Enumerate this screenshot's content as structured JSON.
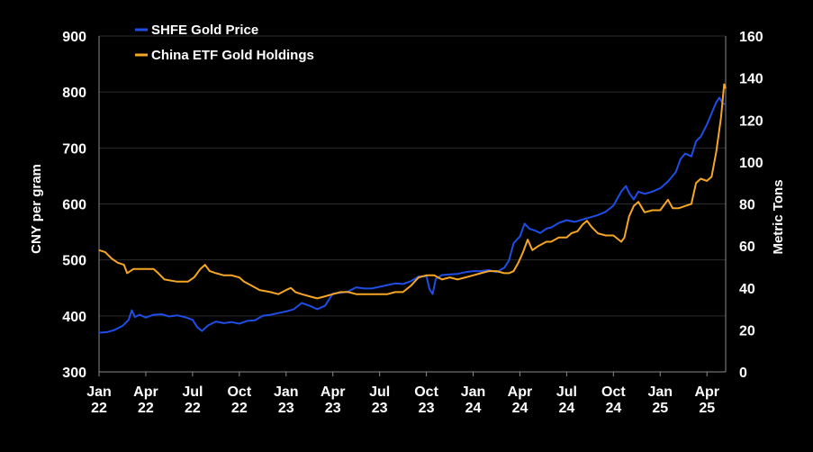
{
  "chart_data": {
    "type": "line",
    "title": "",
    "background": "#000000",
    "x_ticks": [
      {
        "month": "Jan",
        "year": "22",
        "t": 0
      },
      {
        "month": "Apr",
        "year": "22",
        "t": 3
      },
      {
        "month": "Jul",
        "year": "22",
        "t": 6
      },
      {
        "month": "Oct",
        "year": "22",
        "t": 9
      },
      {
        "month": "Jan",
        "year": "23",
        "t": 12
      },
      {
        "month": "Apr",
        "year": "23",
        "t": 15
      },
      {
        "month": "Jul",
        "year": "23",
        "t": 18
      },
      {
        "month": "Oct",
        "year": "23",
        "t": 21
      },
      {
        "month": "Jan",
        "year": "24",
        "t": 24
      },
      {
        "month": "Apr",
        "year": "24",
        "t": 27
      },
      {
        "month": "Jul",
        "year": "24",
        "t": 30
      },
      {
        "month": "Oct",
        "year": "24",
        "t": 33
      },
      {
        "month": "Jan",
        "year": "25",
        "t": 36
      },
      {
        "month": "Apr",
        "year": "25",
        "t": 39
      }
    ],
    "x_range": [
      0,
      40.2
    ],
    "y_left": {
      "label": "CNY per gram",
      "min": 300,
      "max": 900,
      "ticks": [
        300,
        400,
        500,
        600,
        700,
        800,
        900
      ]
    },
    "y_right": {
      "label": "Metric Tons",
      "min": 0,
      "max": 160,
      "ticks": [
        0,
        20,
        40,
        60,
        80,
        100,
        120,
        140,
        160
      ]
    },
    "series": [
      {
        "name": "SHFE Gold Price",
        "axis": "left",
        "color": "#1f4de6",
        "points": [
          [
            0,
            370
          ],
          [
            0.5,
            371
          ],
          [
            1,
            375
          ],
          [
            1.5,
            382
          ],
          [
            1.9,
            393
          ],
          [
            2.1,
            410
          ],
          [
            2.3,
            398
          ],
          [
            2.6,
            402
          ],
          [
            3,
            397
          ],
          [
            3.5,
            402
          ],
          [
            4,
            403
          ],
          [
            4.5,
            399
          ],
          [
            5,
            401
          ],
          [
            5.5,
            398
          ],
          [
            6,
            393
          ],
          [
            6.3,
            380
          ],
          [
            6.6,
            373
          ],
          [
            7,
            383
          ],
          [
            7.5,
            390
          ],
          [
            8,
            387
          ],
          [
            8.5,
            389
          ],
          [
            9,
            386
          ],
          [
            9.5,
            391
          ],
          [
            10,
            392
          ],
          [
            10.5,
            400
          ],
          [
            11,
            402
          ],
          [
            11.5,
            405
          ],
          [
            12,
            408
          ],
          [
            12.5,
            412
          ],
          [
            13,
            423
          ],
          [
            13.5,
            418
          ],
          [
            14,
            412
          ],
          [
            14.5,
            418
          ],
          [
            15,
            440
          ],
          [
            15.5,
            441
          ],
          [
            16,
            444
          ],
          [
            16.5,
            451
          ],
          [
            17,
            449
          ],
          [
            17.5,
            449
          ],
          [
            18,
            452
          ],
          [
            18.5,
            455
          ],
          [
            19,
            458
          ],
          [
            19.5,
            457
          ],
          [
            20,
            462
          ],
          [
            20.5,
            470
          ],
          [
            21,
            471
          ],
          [
            21.2,
            448
          ],
          [
            21.4,
            439
          ],
          [
            21.6,
            466
          ],
          [
            22,
            473
          ],
          [
            22.5,
            474
          ],
          [
            23,
            475
          ],
          [
            23.5,
            478
          ],
          [
            24,
            480
          ],
          [
            24.5,
            480
          ],
          [
            25,
            482
          ],
          [
            25.5,
            478
          ],
          [
            26,
            486
          ],
          [
            26.3,
            499
          ],
          [
            26.6,
            530
          ],
          [
            27,
            542
          ],
          [
            27.3,
            565
          ],
          [
            27.6,
            556
          ],
          [
            28,
            552
          ],
          [
            28.3,
            548
          ],
          [
            28.7,
            556
          ],
          [
            29,
            558
          ],
          [
            29.5,
            566
          ],
          [
            30,
            571
          ],
          [
            30.5,
            568
          ],
          [
            31,
            572
          ],
          [
            31.5,
            576
          ],
          [
            32,
            580
          ],
          [
            32.5,
            586
          ],
          [
            33,
            597
          ],
          [
            33.5,
            622
          ],
          [
            33.8,
            632
          ],
          [
            34,
            620
          ],
          [
            34.3,
            608
          ],
          [
            34.6,
            622
          ],
          [
            35,
            618
          ],
          [
            35.5,
            622
          ],
          [
            36,
            628
          ],
          [
            36.5,
            640
          ],
          [
            37,
            657
          ],
          [
            37.3,
            680
          ],
          [
            37.6,
            690
          ],
          [
            38,
            685
          ],
          [
            38.3,
            712
          ],
          [
            38.6,
            720
          ],
          [
            39,
            742
          ],
          [
            39.3,
            762
          ],
          [
            39.6,
            782
          ],
          [
            39.8,
            790
          ],
          [
            40,
            780
          ],
          [
            40.15,
            778
          ]
        ]
      },
      {
        "name": "China ETF Gold Holdings",
        "axis": "right",
        "color": "#f5a623",
        "points": [
          [
            0,
            58
          ],
          [
            0.4,
            57
          ],
          [
            0.8,
            54
          ],
          [
            1.2,
            52
          ],
          [
            1.6,
            51
          ],
          [
            1.8,
            47
          ],
          [
            2.2,
            49
          ],
          [
            3,
            49
          ],
          [
            3.5,
            49
          ],
          [
            3.8,
            47
          ],
          [
            4.2,
            44
          ],
          [
            5,
            43
          ],
          [
            5.7,
            43
          ],
          [
            6.1,
            45
          ],
          [
            6.5,
            49
          ],
          [
            6.8,
            51
          ],
          [
            7.1,
            48
          ],
          [
            7.5,
            47
          ],
          [
            8,
            46
          ],
          [
            8.5,
            46
          ],
          [
            9,
            45
          ],
          [
            9.3,
            43
          ],
          [
            9.8,
            41
          ],
          [
            10.3,
            39
          ],
          [
            11,
            38
          ],
          [
            11.5,
            37
          ],
          [
            12,
            39
          ],
          [
            12.3,
            40
          ],
          [
            12.6,
            38
          ],
          [
            13,
            37
          ],
          [
            13.5,
            36
          ],
          [
            14,
            35
          ],
          [
            14.5,
            36
          ],
          [
            15,
            37
          ],
          [
            15.5,
            38
          ],
          [
            16,
            38
          ],
          [
            16.5,
            37
          ],
          [
            17,
            37
          ],
          [
            17.5,
            37
          ],
          [
            18,
            37
          ],
          [
            18.5,
            37
          ],
          [
            19,
            38
          ],
          [
            19.5,
            38
          ],
          [
            20,
            41
          ],
          [
            20.5,
            45
          ],
          [
            21,
            46
          ],
          [
            21.5,
            46
          ],
          [
            22,
            44
          ],
          [
            22.5,
            45
          ],
          [
            23,
            44
          ],
          [
            23.5,
            45
          ],
          [
            24,
            46
          ],
          [
            24.5,
            47
          ],
          [
            25,
            48
          ],
          [
            25.5,
            48
          ],
          [
            26,
            47
          ],
          [
            26.3,
            47
          ],
          [
            26.6,
            48
          ],
          [
            26.9,
            52
          ],
          [
            27.2,
            57
          ],
          [
            27.5,
            63
          ],
          [
            27.8,
            58
          ],
          [
            28.2,
            60
          ],
          [
            28.7,
            62
          ],
          [
            29,
            62
          ],
          [
            29.5,
            64
          ],
          [
            30,
            64
          ],
          [
            30.3,
            66
          ],
          [
            30.7,
            67
          ],
          [
            31,
            70
          ],
          [
            31.3,
            72
          ],
          [
            31.6,
            69
          ],
          [
            32,
            66
          ],
          [
            32.5,
            65
          ],
          [
            33,
            65
          ],
          [
            33.5,
            62
          ],
          [
            33.7,
            64
          ],
          [
            34,
            74
          ],
          [
            34.3,
            79
          ],
          [
            34.6,
            81
          ],
          [
            35,
            76
          ],
          [
            35.5,
            77
          ],
          [
            36,
            77
          ],
          [
            36.5,
            82
          ],
          [
            36.8,
            78
          ],
          [
            37.2,
            78
          ],
          [
            37.6,
            79
          ],
          [
            38,
            80
          ],
          [
            38.3,
            90
          ],
          [
            38.6,
            92
          ],
          [
            39,
            91
          ],
          [
            39.3,
            93
          ],
          [
            39.6,
            105
          ],
          [
            39.9,
            121
          ],
          [
            40.1,
            137
          ],
          [
            40.2,
            135
          ]
        ]
      }
    ]
  }
}
